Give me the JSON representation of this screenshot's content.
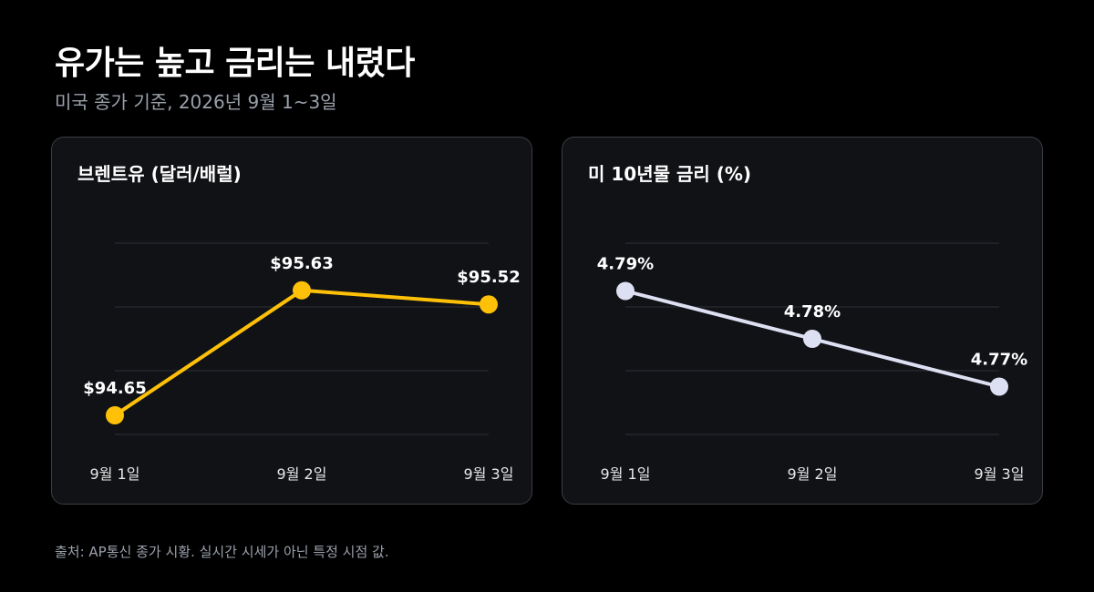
{
  "title": "유가는 높고 금리는 내렸다",
  "subtitle": "미국 종가 기준, 2026년 9월 1~3일",
  "source": "출처: AP통신 종가 시황. 실시간 시세가 아닌 특정 시점 값.",
  "colors": {
    "background": "#000000",
    "panel": "#111216",
    "gridline": "#2e3036",
    "oil_series": "#ffc107",
    "rate_series": "#dde0f2",
    "tick_text": "#e6e6e6"
  },
  "chart_data": [
    {
      "type": "line",
      "title": "브렌트유 (달러/배럴)",
      "categories": [
        "9월 1일",
        "9월 2일",
        "9월 3일"
      ],
      "values": [
        94.65,
        95.63,
        95.52
      ],
      "labels": [
        "$94.65",
        "$95.63",
        "$95.52"
      ],
      "ylim": [
        94.5,
        96.0
      ],
      "grid": true,
      "color": "#ffc107"
    },
    {
      "type": "line",
      "title": "미 10년물 금리 (%)",
      "categories": [
        "9월 1일",
        "9월 2일",
        "9월 3일"
      ],
      "values": [
        4.79,
        4.78,
        4.77
      ],
      "labels": [
        "4.79%",
        "4.78%",
        "4.77%"
      ],
      "ylim": [
        4.76,
        4.8
      ],
      "grid": true,
      "color": "#dde0f2"
    }
  ]
}
